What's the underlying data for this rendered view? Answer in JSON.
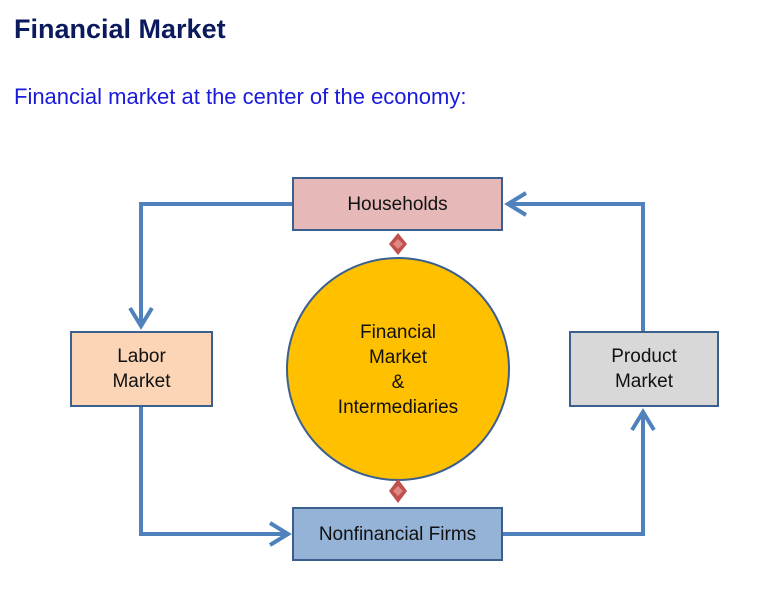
{
  "slide": {
    "title": "Financial Market",
    "subtitle": "Financial market at the center of the economy:"
  },
  "diagram": {
    "households": "Households",
    "labor_market": "Labor\nMarket",
    "product_market": "Product\nMarket",
    "nonfinancial_firms": "Nonfinancial Firms",
    "financial_center": "Financial\nMarket\n&\nIntermediaries"
  },
  "colors": {
    "arrow": "#4f81bd",
    "box_border": "#3b5f8f",
    "households_fill": "#e6b8b8",
    "labor_fill": "#fbd5b5",
    "product_fill": "#d8d8d8",
    "firms_fill": "#95b3d7",
    "circle_fill": "#ffc000",
    "circle_border": "#3b5f8f",
    "connector": "#c0504d"
  }
}
